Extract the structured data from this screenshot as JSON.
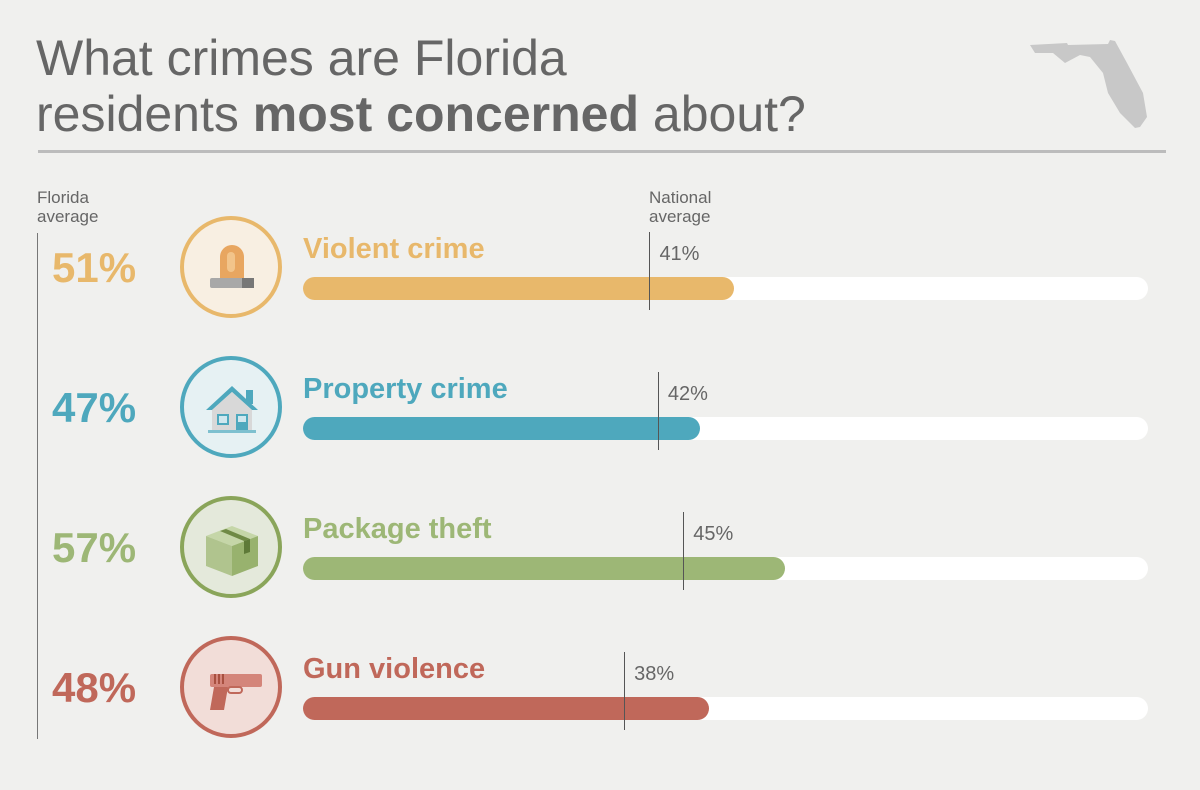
{
  "title": {
    "line1": "What crimes are Florida",
    "line2_pre": "residents ",
    "line2_bold": "most concerned",
    "line2_post": " about?"
  },
  "map_icon": "florida-state-outline",
  "labels": {
    "florida_average": [
      "Florida",
      "average"
    ],
    "national_average": [
      "National",
      "average"
    ]
  },
  "chart_data": {
    "type": "bar",
    "orientation": "horizontal",
    "xlim": [
      0,
      100
    ],
    "unit": "%",
    "categories": [
      "Violent crime",
      "Property crime",
      "Package theft",
      "Gun violence"
    ],
    "series": [
      {
        "name": "Florida average",
        "values": [
          51,
          47,
          57,
          48
        ]
      },
      {
        "name": "National average",
        "values": [
          41,
          42,
          45,
          38
        ]
      }
    ],
    "value_labels": {
      "florida": [
        "51%",
        "47%",
        "57%",
        "48%"
      ],
      "national": [
        "41%",
        "42%",
        "45%",
        "38%"
      ]
    },
    "colors": [
      "#e8b86b",
      "#4ea8bd",
      "#9db776",
      "#c0685a"
    ],
    "circle_bg": [
      "#f8efe2",
      "#e6f1f3",
      "#e4e9db",
      "#f2ddd8"
    ],
    "circle_border": [
      "#e8b86b",
      "#4ea8bd",
      "#8aa55a",
      "#c0685a"
    ],
    "icons": [
      "siren-icon",
      "house-icon",
      "package-icon",
      "gun-icon"
    ]
  }
}
